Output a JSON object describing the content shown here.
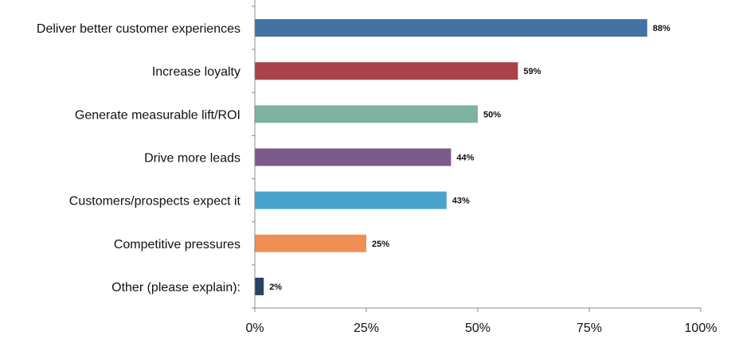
{
  "chart_data": {
    "type": "bar",
    "orientation": "horizontal",
    "categories": [
      "Deliver better customer experiences",
      "Increase loyalty",
      "Generate measurable lift/ROI",
      "Drive more leads",
      "Customers/prospects expect it",
      "Competitive pressures",
      "Other (please explain):"
    ],
    "values": [
      88,
      59,
      50,
      44,
      43,
      25,
      2
    ],
    "value_labels": [
      "88%",
      "59%",
      "50%",
      "44%",
      "43%",
      "25%",
      "2%"
    ],
    "colors": [
      "#4472a5",
      "#a8434b",
      "#7db3a0",
      "#7b5a8c",
      "#4aa3cb",
      "#f08f53",
      "#2a4263"
    ],
    "xlim": [
      0,
      100
    ],
    "x_ticks": [
      0,
      25,
      50,
      75,
      100
    ],
    "x_tick_labels": [
      "0%",
      "25%",
      "50%",
      "75%",
      "100%"
    ],
    "grid": false,
    "legend": "none"
  }
}
